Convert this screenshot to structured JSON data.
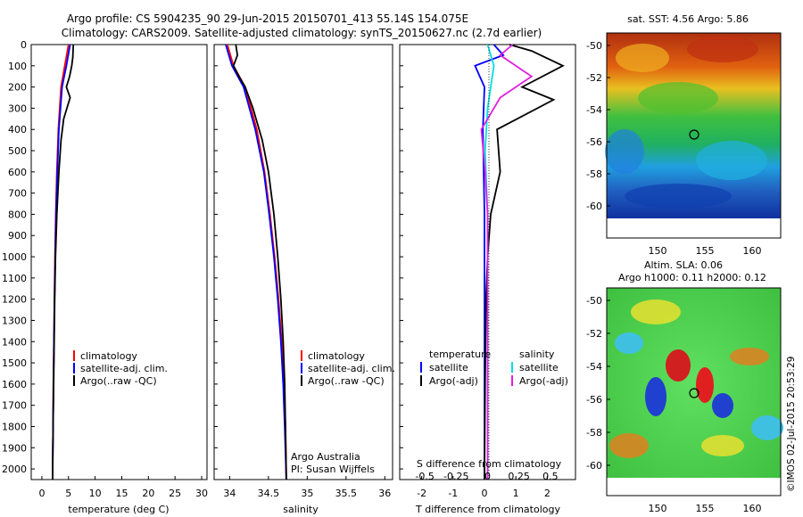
{
  "title": {
    "line1": "Argo profile: CS 5904235_90 29-Jun-2015 20150701_413 55.14S 154.075E",
    "line2": "Climatology: CARS2009. Satellite-adjusted climatology: synTS_20150627.nc (2.7d earlier)"
  },
  "colors": {
    "climatology": "#ff0000",
    "satellite": "#0000ff",
    "argo": "#000000",
    "satellite_salinity": "#00e0e0",
    "argo_salinity": "#e020e0"
  },
  "depth_ticks": [
    "0",
    "100",
    "200",
    "300",
    "400",
    "500",
    "600",
    "700",
    "800",
    "900",
    "1000",
    "1100",
    "1200",
    "1300",
    "1400",
    "1500",
    "1600",
    "1700",
    "1800",
    "1900",
    "2000"
  ],
  "panels": {
    "temperature": {
      "xlabel": "temperature (deg C)",
      "xticks": [
        "0",
        "5",
        "10",
        "15",
        "20",
        "25",
        "30"
      ],
      "legend": [
        "climatology",
        "satellite-adj. clim.",
        "Argo(..raw -QC)"
      ]
    },
    "salinity": {
      "xlabel": "salinity",
      "xticks": [
        "34",
        "34.5",
        "35",
        "35.5",
        "36"
      ],
      "legend": [
        "climatology",
        "satellite-adj. clim.",
        "Argo(..raw -QC)"
      ],
      "credit1": "Argo Australia",
      "credit2": "PI: Susan Wijffels"
    },
    "difference": {
      "xlabel": "T difference from climatology",
      "top_label": "S difference from climatology",
      "xticks": [
        "-2",
        "-1",
        "0",
        "1",
        "2"
      ],
      "sticks": [
        "-0.5",
        "-0.25",
        "0",
        "0.25",
        "0.5"
      ],
      "legend_temp_title": "temperature",
      "legend_sal_title": "salinity",
      "legend_temp": [
        "satellite",
        "Argo(-adj)"
      ],
      "legend_sal": [
        "satellite",
        "Argo(-adj)"
      ]
    }
  },
  "maps": {
    "sst_title": "sat. SST: 4.56 Argo: 5.86",
    "sla_title1": "Altim. SLA: 0.06",
    "sla_title2": "Argo h1000: 0.11 h2000: 0.12",
    "yticks": [
      "-50",
      "-52",
      "-54",
      "-56",
      "-58",
      "-60"
    ],
    "xticks": [
      "150",
      "155",
      "160"
    ]
  },
  "watermark": "©IMOS 02-Jul-2015 20:53:29",
  "chart_data": [
    {
      "type": "line",
      "title": "",
      "xlabel": "temperature (deg C)",
      "ylabel": "",
      "xlim": [
        -2,
        31
      ],
      "ylim": [
        2050,
        0
      ],
      "series": [
        {
          "name": "climatology",
          "x": [
            5.0,
            4.3,
            3.6,
            3.1,
            2.8,
            2.6,
            2.45,
            2.35,
            2.25,
            2.15,
            2.1,
            2.0
          ],
          "y": [
            0,
            100,
            200,
            400,
            600,
            800,
            1000,
            1200,
            1400,
            1600,
            1800,
            2050
          ]
        },
        {
          "name": "satellite-adj. clim.",
          "x": [
            5.3,
            4.6,
            3.8,
            3.2,
            2.9,
            2.65,
            2.5,
            2.38,
            2.27,
            2.17,
            2.1,
            2.0
          ],
          "y": [
            0,
            100,
            200,
            400,
            600,
            800,
            1000,
            1200,
            1400,
            1600,
            1800,
            2050
          ]
        },
        {
          "name": "Argo(..raw -QC)",
          "x": [
            5.9,
            5.8,
            5.6,
            5.2,
            4.6,
            5.3,
            4.1,
            3.6,
            3.2,
            2.8,
            2.55,
            2.4,
            2.3,
            2.2,
            2.1,
            2.0
          ],
          "y": [
            0,
            60,
            100,
            150,
            200,
            250,
            350,
            450,
            600,
            800,
            1000,
            1200,
            1400,
            1600,
            1800,
            2050
          ]
        }
      ]
    },
    {
      "type": "line",
      "title": "",
      "xlabel": "salinity",
      "ylabel": "",
      "xlim": [
        33.8,
        36.1
      ],
      "ylim": [
        2050,
        0
      ],
      "series": [
        {
          "name": "climatology",
          "x": [
            33.97,
            34.05,
            34.2,
            34.35,
            34.45,
            34.52,
            34.58,
            34.63,
            34.67,
            34.7,
            34.72,
            34.73
          ],
          "y": [
            0,
            100,
            200,
            400,
            600,
            800,
            1000,
            1200,
            1400,
            1600,
            1800,
            2050
          ]
        },
        {
          "name": "satellite-adj. clim.",
          "x": [
            33.95,
            34.03,
            34.18,
            34.33,
            34.44,
            34.51,
            34.57,
            34.62,
            34.66,
            34.69,
            34.71,
            34.73
          ],
          "y": [
            0,
            100,
            200,
            400,
            600,
            800,
            1000,
            1200,
            1400,
            1600,
            1800,
            2050
          ]
        },
        {
          "name": "Argo(..raw -QC)",
          "x": [
            34.08,
            34.1,
            34.05,
            34.12,
            34.2,
            34.3,
            34.42,
            34.5,
            34.57,
            34.62,
            34.66,
            34.69,
            34.71,
            34.73
          ],
          "y": [
            0,
            50,
            100,
            150,
            200,
            300,
            450,
            600,
            800,
            1000,
            1200,
            1400,
            1600,
            2050
          ]
        }
      ]
    },
    {
      "type": "line",
      "title": "",
      "xlabel": "T difference from climatology",
      "ylabel": "",
      "xlim": [
        -2.7,
        2.9
      ],
      "ylim": [
        2050,
        0
      ],
      "series": [
        {
          "name": "satellite",
          "x": [
            0.3,
            0.6,
            -0.3,
            0.0,
            -0.05,
            0.0,
            0.0,
            0.0
          ],
          "y": [
            0,
            50,
            100,
            200,
            400,
            800,
            1200,
            2050
          ]
        },
        {
          "name": "Argo(-adj)",
          "x": [
            0.8,
            1.5,
            2.5,
            1.2,
            2.2,
            0.4,
            0.5,
            0.2,
            0.1,
            0.05,
            0.02,
            0.0
          ],
          "y": [
            0,
            30,
            100,
            200,
            260,
            400,
            600,
            800,
            1000,
            1200,
            1600,
            2050
          ]
        }
      ]
    },
    {
      "type": "line",
      "title": "",
      "xlabel": "S difference from climatology",
      "ylabel": "",
      "xlim": [
        -0.7,
        0.7
      ],
      "ylim": [
        2050,
        0
      ],
      "series": [
        {
          "name": "satellite",
          "x": [
            0.0,
            0.05,
            0.0,
            -0.02,
            0.0,
            0.0,
            0.0
          ],
          "y": [
            0,
            100,
            300,
            500,
            800,
            1200,
            2050
          ]
        },
        {
          "name": "Argo(-adj)",
          "x": [
            0.2,
            0.1,
            0.35,
            0.1,
            -0.05,
            -0.02,
            0.0,
            0.0,
            0.0
          ],
          "y": [
            0,
            50,
            150,
            250,
            400,
            600,
            800,
            1200,
            2050
          ]
        }
      ]
    }
  ]
}
